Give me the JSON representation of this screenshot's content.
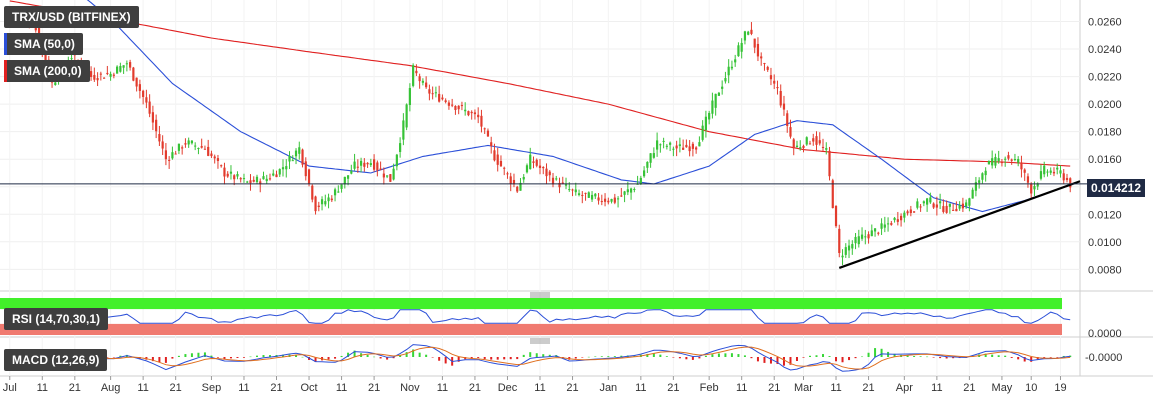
{
  "legends": {
    "pair": "TRX/USD (BITFINEX)",
    "sma50": "SMA (50,0)",
    "sma200": "SMA (200,0)",
    "rsi": "RSI (14,70,30,1)",
    "macd": "MACD (12,26,9)"
  },
  "current_price_label": "0.014212",
  "colors": {
    "bull": "#36c236",
    "bear": "#e23b2d",
    "sma50": "#2b4fd8",
    "sma200": "#e02020",
    "trendline": "#000000",
    "rsi_line": "#2b4fd8",
    "rsi_overbought": "#42f02a",
    "rsi_oversold": "#f07a70",
    "macd_line": "#2b4fd8",
    "signal_line": "#e07020",
    "hist_pos": "#36d636",
    "hist_neg": "#e02020"
  },
  "chart_data": [
    {
      "type": "candlestick",
      "title": "TRX/USD (BITFINEX)",
      "ylim": [
        0.0065,
        0.0272
      ],
      "ytick_labels": [
        "0.0080",
        "0.0100",
        "0.0120",
        "0.0140",
        "0.0160",
        "0.0180",
        "0.0200",
        "0.0220",
        "0.0240",
        "0.0260"
      ],
      "yticks": [
        0.008,
        0.01,
        0.012,
        0.014,
        0.016,
        0.018,
        0.02,
        0.022,
        0.024,
        0.026
      ],
      "x_tick_labels": [
        "Jul",
        "11",
        "21",
        "Aug",
        "11",
        "21",
        "Sep",
        "11",
        "21",
        "Oct",
        "11",
        "21",
        "Nov",
        "11",
        "21",
        "Dec",
        "11",
        "21",
        "Jan",
        "11",
        "21",
        "Feb",
        "11",
        "21",
        "Mar",
        "11",
        "21",
        "Apr",
        "11",
        "21",
        "May",
        "10",
        "19"
      ],
      "x_tick_dates": [
        "2019-07-01",
        "2019-07-11",
        "2019-07-21",
        "2019-08-01",
        "2019-08-11",
        "2019-08-21",
        "2019-09-01",
        "2019-09-11",
        "2019-09-21",
        "2019-10-01",
        "2019-10-11",
        "2019-10-21",
        "2019-11-01",
        "2019-11-11",
        "2019-11-21",
        "2019-12-01",
        "2019-12-11",
        "2019-12-21",
        "2020-01-01",
        "2020-01-11",
        "2020-01-21",
        "2020-02-01",
        "2020-02-11",
        "2020-02-21",
        "2020-03-01",
        "2020-03-11",
        "2020-03-21",
        "2020-04-01",
        "2020-04-11",
        "2020-04-21",
        "2020-05-01",
        "2020-05-10",
        "2020-05-19"
      ],
      "current_price": 0.014212,
      "price_keypoints": [
        [
          "2019-07-01",
          0.027
        ],
        [
          "2019-07-08",
          0.0262
        ],
        [
          "2019-07-14",
          0.0215
        ],
        [
          "2019-07-20",
          0.0235
        ],
        [
          "2019-07-26",
          0.022
        ],
        [
          "2019-08-01",
          0.0222
        ],
        [
          "2019-08-06",
          0.023
        ],
        [
          "2019-08-12",
          0.02
        ],
        [
          "2019-08-18",
          0.016
        ],
        [
          "2019-08-24",
          0.0172
        ],
        [
          "2019-08-30",
          0.0168
        ],
        [
          "2019-09-05",
          0.015
        ],
        [
          "2019-09-12",
          0.0143
        ],
        [
          "2019-09-18",
          0.0146
        ],
        [
          "2019-09-22",
          0.0152
        ],
        [
          "2019-09-28",
          0.0168
        ],
        [
          "2019-10-03",
          0.0125
        ],
        [
          "2019-10-08",
          0.0133
        ],
        [
          "2019-10-15",
          0.0155
        ],
        [
          "2019-10-20",
          0.0158
        ],
        [
          "2019-10-26",
          0.0145
        ],
        [
          "2019-10-30",
          0.0185
        ],
        [
          "2019-11-02",
          0.0225
        ],
        [
          "2019-11-06",
          0.021
        ],
        [
          "2019-11-14",
          0.02
        ],
        [
          "2019-11-22",
          0.019
        ],
        [
          "2019-11-27",
          0.0162
        ],
        [
          "2019-12-04",
          0.0138
        ],
        [
          "2019-12-08",
          0.016
        ],
        [
          "2019-12-15",
          0.0145
        ],
        [
          "2019-12-22",
          0.0135
        ],
        [
          "2019-12-27",
          0.0132
        ],
        [
          "2020-01-03",
          0.013
        ],
        [
          "2020-01-10",
          0.0142
        ],
        [
          "2020-01-16",
          0.0172
        ],
        [
          "2020-01-22",
          0.0168
        ],
        [
          "2020-01-28",
          0.017
        ],
        [
          "2020-02-03",
          0.0205
        ],
        [
          "2020-02-08",
          0.023
        ],
        [
          "2020-02-13",
          0.0255
        ],
        [
          "2020-02-17",
          0.023
        ],
        [
          "2020-02-22",
          0.021
        ],
        [
          "2020-02-27",
          0.0168
        ],
        [
          "2020-03-04",
          0.0175
        ],
        [
          "2020-03-08",
          0.0165
        ],
        [
          "2020-03-12",
          0.009
        ],
        [
          "2020-03-14",
          0.0095
        ],
        [
          "2020-03-18",
          0.0102
        ],
        [
          "2020-03-25",
          0.011
        ],
        [
          "2020-04-02",
          0.0122
        ],
        [
          "2020-04-08",
          0.013
        ],
        [
          "2020-04-14",
          0.0124
        ],
        [
          "2020-04-20",
          0.0127
        ],
        [
          "2020-04-26",
          0.0155
        ],
        [
          "2020-05-02",
          0.0162
        ],
        [
          "2020-05-06",
          0.0158
        ],
        [
          "2020-05-10",
          0.0138
        ],
        [
          "2020-05-14",
          0.0152
        ],
        [
          "2020-05-19",
          0.015
        ],
        [
          "2020-05-22",
          0.0142
        ]
      ],
      "sma50_keypoints": [
        [
          "2019-07-01",
          0.033
        ],
        [
          "2019-07-15",
          0.0295
        ],
        [
          "2019-08-01",
          0.0262
        ],
        [
          "2019-08-20",
          0.0215
        ],
        [
          "2019-09-10",
          0.018
        ],
        [
          "2019-10-01",
          0.0155
        ],
        [
          "2019-10-20",
          0.015
        ],
        [
          "2019-11-05",
          0.0162
        ],
        [
          "2019-11-25",
          0.017
        ],
        [
          "2019-12-15",
          0.0162
        ],
        [
          "2020-01-05",
          0.0145
        ],
        [
          "2020-01-15",
          0.0142
        ],
        [
          "2020-02-01",
          0.0155
        ],
        [
          "2020-02-15",
          0.0178
        ],
        [
          "2020-02-28",
          0.0188
        ],
        [
          "2020-03-10",
          0.0185
        ],
        [
          "2020-03-25",
          0.016
        ],
        [
          "2020-04-10",
          0.0132
        ],
        [
          "2020-04-25",
          0.0122
        ],
        [
          "2020-05-08",
          0.013
        ],
        [
          "2020-05-22",
          0.0141
        ]
      ],
      "sma200_keypoints": [
        [
          "2019-07-01",
          0.0275
        ],
        [
          "2019-08-01",
          0.0262
        ],
        [
          "2019-09-01",
          0.0248
        ],
        [
          "2019-10-01",
          0.0238
        ],
        [
          "2019-11-01",
          0.0228
        ],
        [
          "2019-12-01",
          0.0215
        ],
        [
          "2020-01-01",
          0.02
        ],
        [
          "2020-02-01",
          0.018
        ],
        [
          "2020-03-01",
          0.0167
        ],
        [
          "2020-04-01",
          0.016
        ],
        [
          "2020-05-01",
          0.0158
        ],
        [
          "2020-05-22",
          0.0155
        ]
      ],
      "trendline": [
        [
          "2020-03-12",
          0.0081
        ],
        [
          "2020-05-25",
          0.0144
        ]
      ]
    },
    {
      "type": "line",
      "title": "RSI (14,70,30,1)",
      "ytick_labels": [
        "0.0000"
      ],
      "levels": [
        70,
        30
      ],
      "ylim": [
        0,
        100
      ]
    },
    {
      "type": "line",
      "title": "MACD (12,26,9)",
      "ytick_labels": [
        "-0.0000"
      ],
      "series": [
        {
          "name": "MACD"
        },
        {
          "name": "Signal"
        }
      ]
    }
  ]
}
